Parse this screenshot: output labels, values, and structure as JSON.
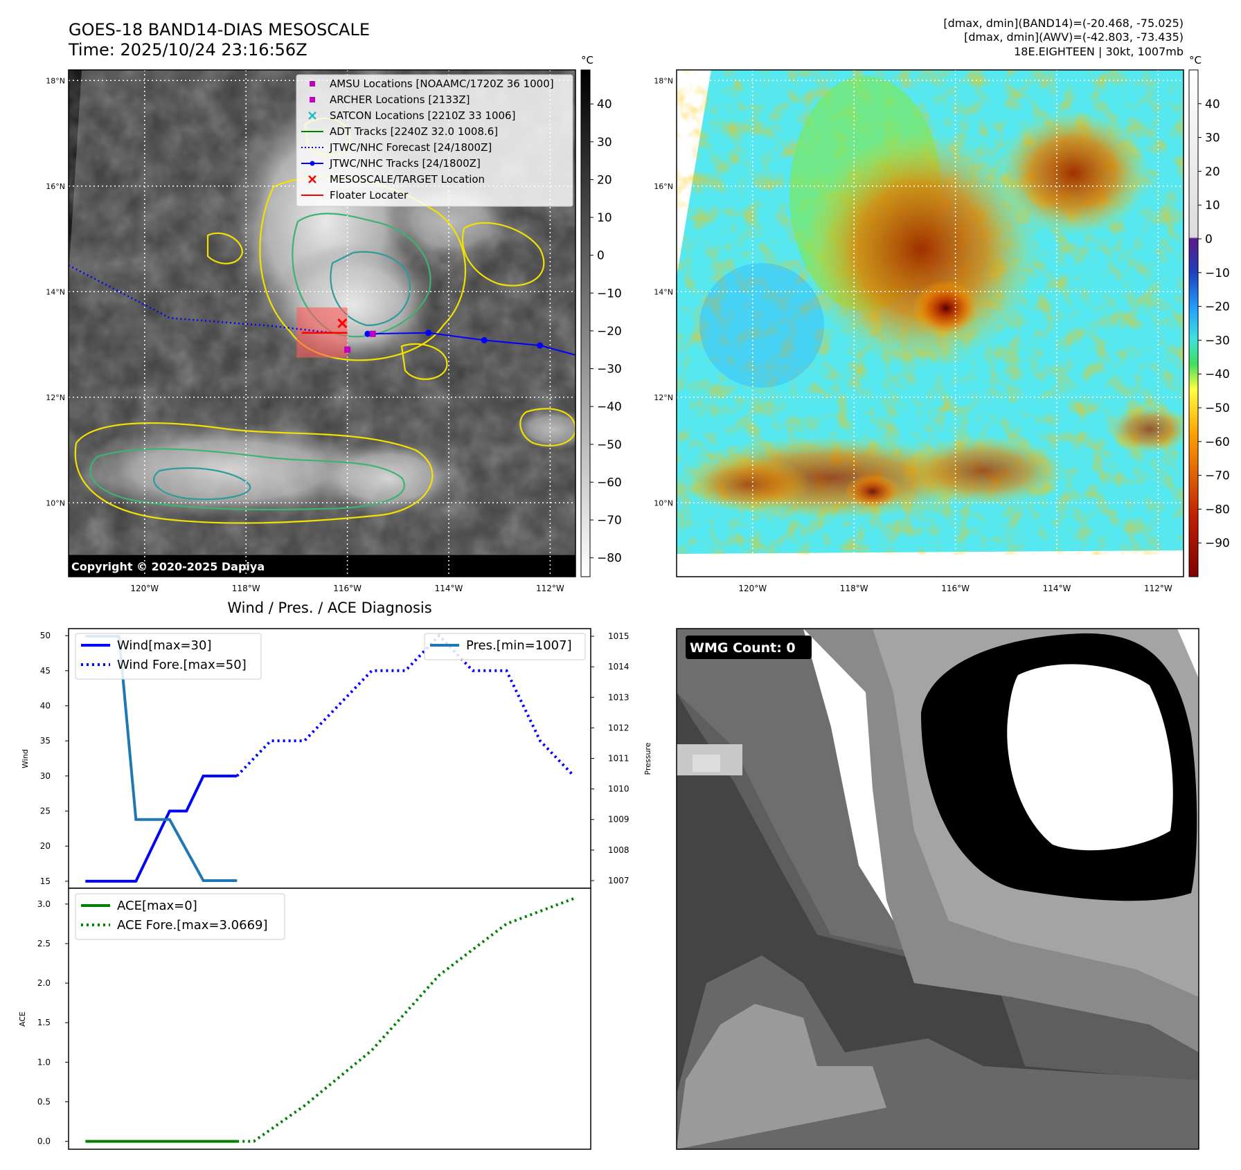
{
  "header": {
    "title_line1": "GOES-18 BAND14-DIAS MESOSCALE",
    "title_line2": "Time: 2025/10/24 23:16:56Z",
    "info_line1": "[dmax, dmin](BAND14)=(-20.468, -75.025)",
    "info_line2": "[dmax, dmin](AWV)=(-42.803, -73.435)",
    "info_line3": "18E.EIGHTEEN | 30kt, 1007mb"
  },
  "maps": {
    "lat_labels": [
      "18°N",
      "16°N",
      "14°N",
      "12°N",
      "10°N"
    ],
    "lat_values": [
      18,
      16,
      14,
      12,
      10
    ],
    "lon_labels": [
      "120°W",
      "118°W",
      "116°W",
      "114°W",
      "112°W"
    ],
    "lon_values": [
      -120,
      -118,
      -116,
      -114,
      -112
    ],
    "lat_range": [
      8.6,
      18.2
    ],
    "lon_range": [
      -121.5,
      -111.5
    ],
    "copyright": "Copyright © 2020-2025 Dapiya",
    "legend": [
      {
        "label": "AMSU Locations [NOAAMC/1720Z 36 1000]",
        "symbol": "square",
        "color": "#c000c0"
      },
      {
        "label": "ARCHER Locations [2133Z]",
        "symbol": "square",
        "color": "#c000c0"
      },
      {
        "label": "SATCON Locations [2210Z 33 1006]",
        "symbol": "x",
        "color": "#17becf"
      },
      {
        "label": "ADT Tracks [2240Z 32.0 1008.6]",
        "symbol": "line",
        "color": "#008000"
      },
      {
        "label": "JTWC/NHC Forecast [24/1800Z]",
        "symbol": "dotted",
        "color": "#0000ff"
      },
      {
        "label": "JTWC/NHC Tracks [24/1800Z]",
        "symbol": "line-dot",
        "color": "#0000ff"
      },
      {
        "label": "MESOSCALE/TARGET Location",
        "symbol": "x",
        "color": "#ff0000"
      },
      {
        "label": "Floater Locater",
        "symbol": "line",
        "color": "#ff0000"
      }
    ],
    "colorbar_left": {
      "unit": "°C",
      "ticks": [
        "40",
        "30",
        "20",
        "10",
        "0",
        "−10",
        "−20",
        "−30",
        "−40",
        "−50",
        "−60",
        "−70",
        "−80"
      ],
      "tick_values": [
        40,
        30,
        20,
        10,
        0,
        -10,
        -20,
        -30,
        -40,
        -50,
        -60,
        -70,
        -80
      ],
      "range": [
        -85,
        49
      ]
    },
    "colorbar_right": {
      "unit": "°C",
      "ticks": [
        "40",
        "30",
        "20",
        "10",
        "0",
        "−10",
        "−20",
        "−30",
        "−40",
        "−50",
        "−60",
        "−70",
        "−80",
        "−90"
      ],
      "tick_values": [
        40,
        30,
        20,
        10,
        0,
        -10,
        -20,
        -30,
        -40,
        -50,
        -60,
        -70,
        -80,
        -90
      ],
      "range": [
        -100,
        50
      ]
    },
    "forecast_track": {
      "lon": [
        -121.5,
        -119.5,
        -117.5,
        -116.3
      ],
      "lat": [
        14.5,
        13.5,
        13.35,
        13.22
      ]
    },
    "best_track": {
      "lon": [
        -115.6,
        -114.4,
        -113.3,
        -112.2,
        -111.5
      ],
      "lat": [
        13.2,
        13.22,
        13.08,
        12.98,
        12.8
      ]
    },
    "target": {
      "lon": -116.1,
      "lat": 13.4
    },
    "archer": {
      "lon": -115.5,
      "lat": 13.2
    },
    "amsu": {
      "lon": -116.0,
      "lat": 12.9
    },
    "floater": {
      "lon": [
        -116.9,
        -116.0
      ],
      "lat": [
        13.22,
        13.22
      ]
    },
    "mesoscale_box": {
      "lon": [
        -117.0,
        -116.0
      ],
      "lat": [
        12.75,
        13.7
      ]
    }
  },
  "chart_data": [
    {
      "type": "line",
      "title": "Wind / Pres. / ACE Diagnosis",
      "ylabel": "Wind",
      "ylabel_right": "Pressure",
      "ylim": [
        14,
        51
      ],
      "ylim_right": [
        1006.75,
        1015.25
      ],
      "yticks": [
        50,
        45,
        40,
        35,
        30,
        25,
        20,
        15
      ],
      "yticks_right": [
        1015,
        1014,
        1013,
        1012,
        1011,
        1010,
        1009,
        1008,
        1007
      ],
      "x_range": [
        0,
        31
      ],
      "series": [
        {
          "name": "Wind[max=30]",
          "color": "#0000ff",
          "style": "solid",
          "x": [
            1,
            2,
            3,
            4,
            5,
            6,
            7,
            8,
            9,
            10
          ],
          "y": [
            15,
            15,
            15,
            15,
            20,
            25,
            25,
            30,
            30,
            30
          ]
        },
        {
          "name": "Wind Fore.[max=50]",
          "color": "#0000ff",
          "style": "dotted",
          "x": [
            10,
            12,
            14,
            16,
            18,
            20,
            22,
            24,
            26,
            28,
            30
          ],
          "y": [
            30,
            35,
            35,
            40,
            45,
            45,
            50,
            45,
            45,
            35,
            30
          ]
        },
        {
          "name": "Pres.[min=1007]",
          "color": "#1f77b4",
          "style": "solid",
          "axis": "right",
          "x": [
            1,
            2,
            3,
            4,
            5,
            6,
            7,
            8,
            9,
            10
          ],
          "y": [
            1015,
            1015,
            1015,
            1009,
            1009,
            1009,
            1008,
            1007,
            1007,
            1007
          ]
        }
      ]
    },
    {
      "type": "line",
      "ylabel": "ACE",
      "ylim": [
        -0.1,
        3.2
      ],
      "yticks": [
        3.0,
        2.5,
        2.0,
        1.5,
        1.0,
        0.5,
        0.0
      ],
      "ytick_labels": [
        "3.0",
        "2.5",
        "2.0",
        "1.5",
        "1.0",
        "0.5",
        "0.0"
      ],
      "x_range": [
        0,
        31
      ],
      "series": [
        {
          "name": "ACE[max=0]",
          "color": "#008000",
          "style": "solid",
          "x": [
            1,
            10
          ],
          "y": [
            0,
            0
          ]
        },
        {
          "name": "ACE Fore.[max=3.0669]",
          "color": "#008000",
          "style": "dotted",
          "x": [
            10,
            11,
            14,
            18,
            22,
            26,
            30
          ],
          "y": [
            0,
            0,
            0.45,
            1.15,
            2.1,
            2.75,
            3.07
          ]
        }
      ]
    }
  ],
  "wmg": {
    "label": "WMG Count: 0"
  }
}
